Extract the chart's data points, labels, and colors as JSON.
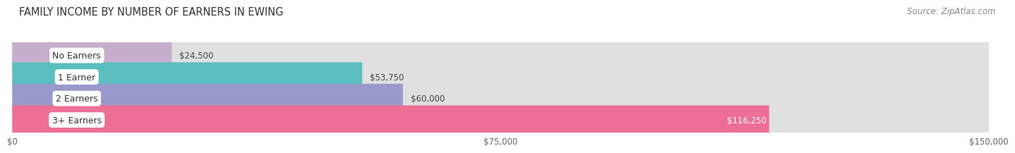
{
  "title": "FAMILY INCOME BY NUMBER OF EARNERS IN EWING",
  "source": "Source: ZipAtlas.com",
  "categories": [
    "No Earners",
    "1 Earner",
    "2 Earners",
    "3+ Earners"
  ],
  "values": [
    24500,
    53750,
    60000,
    116250
  ],
  "bar_colors": [
    "#c8aece",
    "#5bbfbf",
    "#9999cc",
    "#ee6f96"
  ],
  "value_labels": [
    "$24,500",
    "$53,750",
    "$60,000",
    "$116,250"
  ],
  "value_inside": [
    false,
    false,
    false,
    true
  ],
  "xlim": [
    0,
    150000
  ],
  "xticks": [
    0,
    75000,
    150000
  ],
  "xtick_labels": [
    "$0",
    "$75,000",
    "$150,000"
  ],
  "bg_bar_color": "#e6e6e6",
  "background_color": "#ffffff",
  "row_bg_colors": [
    "#f5f5f5",
    "#ececec",
    "#f5f5f5",
    "#e8e8e8"
  ],
  "title_fontsize": 10.5,
  "source_fontsize": 8.5,
  "label_fontsize": 9,
  "value_fontsize": 8.5,
  "tick_fontsize": 8.5
}
